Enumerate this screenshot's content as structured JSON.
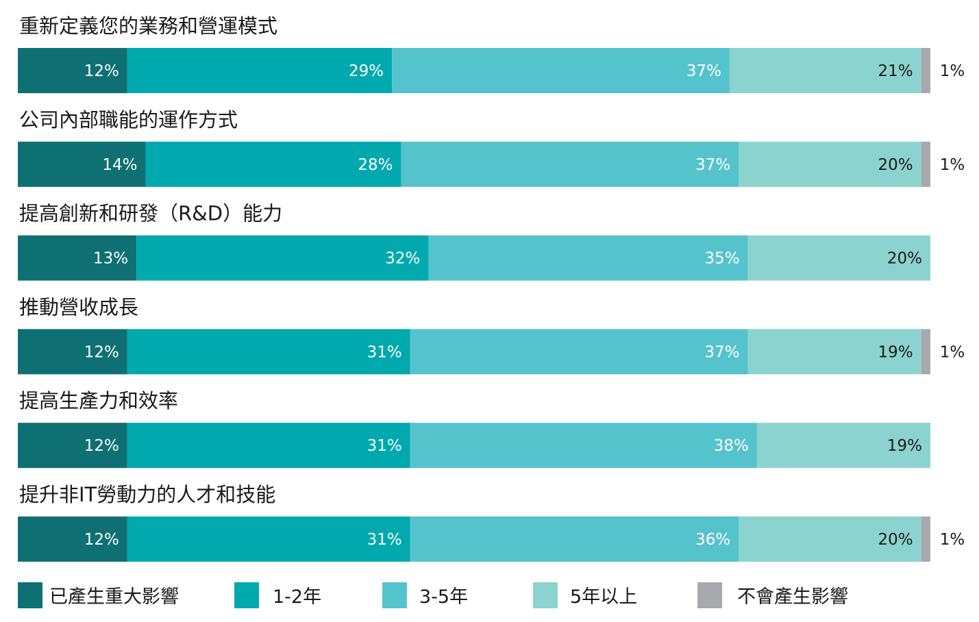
{
  "chart_data": {
    "type": "bar",
    "orientation": "horizontal",
    "stacked": true,
    "unit": "%",
    "title": "",
    "xlabel": "",
    "ylabel": "",
    "categories": [
      "重新定義您的業務和營運模式",
      "公司內部職能的運作方式",
      "提高創新和研發（R&D）能力",
      "推動營收成長",
      "提高生產力和效率",
      "提升非IT勞動力的人才和技能"
    ],
    "series": [
      {
        "name": "已產生重大影響",
        "color": "#0e7072",
        "values": [
          12,
          14,
          13,
          12,
          12,
          12
        ]
      },
      {
        "name": "1-2年",
        "color": "#00a9ae",
        "values": [
          29,
          28,
          32,
          31,
          31,
          31
        ]
      },
      {
        "name": "3-5年",
        "color": "#55c3cc",
        "values": [
          37,
          37,
          35,
          37,
          38,
          36
        ]
      },
      {
        "name": "5年以上",
        "color": "#8bd3cf",
        "values": [
          21,
          20,
          20,
          19,
          19,
          20
        ]
      },
      {
        "name": "不會產生影響",
        "color": "#a7a9ac",
        "values": [
          1,
          1,
          0,
          1,
          0,
          1
        ]
      }
    ],
    "grid": false,
    "legend_position": "bottom"
  }
}
